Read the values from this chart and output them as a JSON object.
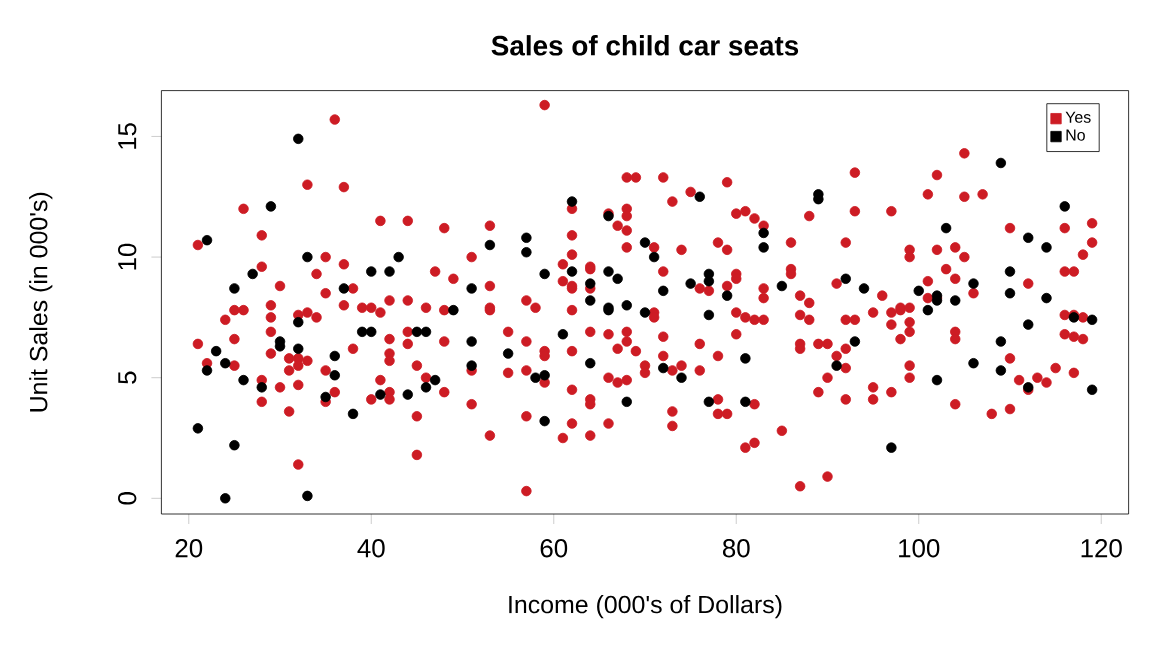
{
  "chart_data": {
    "type": "scatter",
    "title": "Sales of child car seats",
    "xlabel": "Income (000's of Dollars)",
    "ylabel": "Unit Sales (in 000's)",
    "xlim": [
      17,
      123
    ],
    "ylim": [
      -0.65,
      16.9
    ],
    "xticks": [
      20,
      40,
      60,
      80,
      100,
      120
    ],
    "yticks": [
      0,
      5,
      10,
      15
    ],
    "marker": "circle",
    "legend": "top right",
    "grid": false,
    "series": [
      {
        "name": "Yes",
        "color": "#cd1c24",
        "x": [
          36,
          33,
          37,
          26,
          21,
          28,
          35,
          41,
          44,
          48,
          51,
          28,
          30,
          34,
          37,
          35,
          37,
          38,
          47,
          49,
          25,
          26,
          24,
          29,
          29,
          33,
          32,
          34,
          39,
          40,
          41,
          42,
          44,
          46,
          48,
          21,
          25,
          29,
          29,
          31,
          32,
          33,
          32,
          38,
          42,
          42,
          42,
          44,
          44,
          48,
          51,
          22,
          25,
          31,
          28,
          30,
          32,
          35,
          36,
          41,
          42,
          40,
          42,
          46,
          45,
          48,
          35,
          28,
          31,
          45,
          51,
          32,
          45,
          59,
          68,
          69,
          72,
          79,
          75,
          73,
          62,
          66,
          68,
          68,
          67,
          68,
          80,
          81,
          82,
          83,
          88,
          53,
          62,
          61,
          62,
          64,
          64,
          68,
          71,
          74,
          78,
          79,
          86,
          53,
          61,
          62,
          62,
          64,
          72,
          76,
          77,
          79,
          80,
          80,
          83,
          83,
          86,
          86,
          57,
          58,
          53,
          53,
          71,
          71,
          80,
          81,
          82,
          83,
          87,
          62,
          55,
          57,
          59,
          59,
          62,
          64,
          66,
          68,
          67,
          69,
          68,
          72,
          72,
          70,
          70,
          76,
          78,
          80,
          87,
          87,
          55,
          57,
          59,
          62,
          64,
          64,
          66,
          67,
          68,
          73,
          74,
          76,
          82,
          78,
          78,
          79,
          73,
          73,
          66,
          62,
          61,
          64,
          53,
          57,
          81,
          82,
          85,
          57,
          87,
          105,
          93,
          102,
          101,
          105,
          107,
          93,
          97,
          92,
          110,
          116,
          119,
          119,
          118,
          99,
          99,
          102,
          104,
          105,
          103,
          104,
          101,
          106,
          112,
          116,
          117,
          91,
          96,
          95,
          87,
          88,
          88,
          92,
          93,
          97,
          98,
          98,
          99,
          97,
          99,
          99,
          98,
          101,
          102,
          104,
          104,
          116,
          117,
          118,
          116,
          117,
          118,
          89,
          90,
          91,
          92,
          92,
          90,
          89,
          92,
          95,
          95,
          97,
          99,
          99,
          110,
          111,
          112,
          113,
          114,
          115,
          117,
          104,
          108,
          110,
          90
        ],
        "values": [
          15.7,
          13.0,
          12.9,
          12.0,
          10.5,
          10.9,
          10.0,
          11.5,
          11.5,
          11.2,
          10.0,
          9.6,
          8.8,
          9.3,
          9.7,
          8.5,
          8.0,
          8.7,
          9.4,
          9.1,
          7.8,
          7.8,
          7.4,
          8.0,
          7.5,
          7.7,
          7.6,
          7.5,
          7.9,
          7.9,
          7.7,
          8.2,
          8.2,
          7.9,
          7.8,
          6.4,
          6.6,
          6.9,
          6.0,
          5.8,
          5.8,
          5.7,
          5.5,
          6.2,
          6.6,
          6.0,
          5.7,
          6.4,
          6.9,
          6.5,
          5.3,
          5.6,
          5.5,
          5.3,
          4.9,
          4.6,
          4.7,
          5.3,
          4.4,
          4.9,
          4.4,
          4.1,
          4.1,
          5.0,
          5.5,
          4.4,
          4.0,
          4.0,
          3.6,
          3.4,
          3.9,
          1.4,
          1.8,
          16.3,
          13.3,
          13.3,
          13.3,
          13.1,
          12.7,
          12.3,
          12.0,
          11.8,
          12.0,
          11.7,
          11.3,
          11.1,
          11.8,
          11.9,
          11.6,
          11.3,
          11.7,
          11.3,
          10.9,
          9.7,
          10.1,
          9.6,
          9.5,
          10.4,
          10.4,
          10.3,
          10.6,
          10.3,
          10.6,
          8.8,
          9.0,
          8.7,
          8.8,
          8.7,
          9.4,
          8.7,
          8.6,
          8.8,
          9.3,
          9.1,
          8.7,
          8.3,
          9.5,
          9.3,
          8.2,
          7.9,
          7.9,
          7.8,
          7.7,
          7.5,
          7.7,
          7.5,
          7.4,
          7.4,
          7.6,
          7.8,
          6.9,
          6.5,
          6.1,
          5.9,
          6.1,
          6.9,
          6.8,
          6.9,
          6.2,
          6.1,
          6.5,
          6.7,
          5.9,
          5.5,
          5.2,
          6.4,
          5.9,
          6.8,
          6.4,
          6.2,
          5.2,
          5.3,
          4.8,
          4.5,
          4.1,
          3.9,
          5.0,
          4.8,
          4.9,
          5.3,
          5.5,
          5.3,
          3.9,
          4.1,
          3.5,
          3.5,
          3.6,
          3.0,
          3.1,
          3.1,
          2.5,
          2.6,
          2.6,
          3.4,
          2.1,
          2.3,
          2.8,
          0.3,
          0.5,
          14.3,
          13.5,
          13.4,
          12.6,
          12.5,
          12.6,
          11.9,
          11.9,
          10.6,
          11.2,
          11.2,
          11.4,
          10.6,
          10.1,
          10.3,
          10.0,
          10.3,
          10.4,
          10.0,
          9.5,
          9.1,
          9.0,
          8.5,
          8.9,
          9.4,
          9.4,
          8.9,
          8.4,
          7.7,
          8.4,
          8.1,
          7.4,
          7.4,
          7.4,
          7.7,
          7.8,
          7.9,
          7.9,
          7.2,
          7.3,
          6.9,
          6.6,
          8.3,
          8.3,
          6.9,
          6.6,
          7.6,
          7.6,
          7.5,
          6.8,
          6.7,
          6.6,
          6.4,
          6.4,
          5.9,
          6.2,
          5.4,
          5.0,
          4.4,
          4.1,
          4.6,
          4.1,
          4.4,
          5.5,
          5.0,
          5.8,
          4.9,
          4.5,
          5.0,
          4.8,
          5.4,
          5.2,
          3.9,
          3.5,
          3.7,
          0.9
        ]
      },
      {
        "name": "No",
        "color": "#000000",
        "x": [
          32,
          29,
          22,
          33,
          27,
          25,
          43,
          40,
          42,
          37,
          51,
          49,
          32,
          39,
          40,
          45,
          46,
          51,
          23,
          24,
          22,
          30,
          30,
          32,
          36,
          51,
          26,
          28,
          36,
          35,
          41,
          44,
          46,
          47,
          38,
          21,
          25,
          24,
          33,
          62,
          76,
          66,
          57,
          53,
          57,
          70,
          71,
          83,
          83,
          59,
          62,
          64,
          66,
          67,
          72,
          75,
          77,
          77,
          79,
          85,
          64,
          66,
          66,
          68,
          70,
          77,
          61,
          55,
          64,
          72,
          74,
          81,
          58,
          59,
          68,
          77,
          81,
          59,
          109,
          89,
          89,
          116,
          103,
          112,
          114,
          92,
          94,
          100,
          102,
          102,
          104,
          106,
          110,
          110,
          112,
          114,
          101,
          109,
          93,
          91,
          106,
          109,
          102,
          112,
          119,
          117,
          119,
          97
        ],
        "values": [
          14.9,
          12.1,
          10.7,
          10.0,
          9.3,
          8.7,
          10.0,
          9.4,
          9.4,
          8.7,
          8.7,
          7.8,
          7.3,
          6.9,
          6.9,
          6.9,
          6.9,
          6.5,
          6.1,
          5.6,
          5.3,
          6.5,
          6.3,
          6.2,
          5.9,
          5.5,
          4.9,
          4.6,
          5.1,
          4.2,
          4.3,
          4.3,
          4.6,
          4.9,
          3.5,
          2.9,
          2.2,
          0.0,
          0.1,
          12.3,
          12.5,
          11.7,
          10.8,
          10.5,
          10.2,
          10.6,
          10.0,
          11.0,
          10.4,
          9.3,
          9.4,
          8.9,
          9.4,
          9.1,
          8.6,
          8.9,
          9.3,
          9.0,
          8.4,
          8.8,
          8.2,
          7.9,
          7.8,
          8.0,
          7.7,
          7.6,
          6.8,
          6.0,
          5.6,
          5.4,
          5.0,
          5.8,
          5.0,
          5.1,
          4.0,
          4.0,
          4.0,
          3.2,
          13.9,
          12.6,
          12.4,
          12.1,
          11.2,
          10.8,
          10.4,
          9.1,
          8.7,
          8.6,
          8.4,
          8.2,
          8.2,
          8.9,
          9.4,
          8.5,
          7.2,
          8.3,
          7.8,
          6.5,
          6.5,
          5.5,
          5.6,
          5.3,
          4.9,
          4.6,
          7.4,
          7.5,
          4.5,
          2.1
        ]
      }
    ]
  }
}
